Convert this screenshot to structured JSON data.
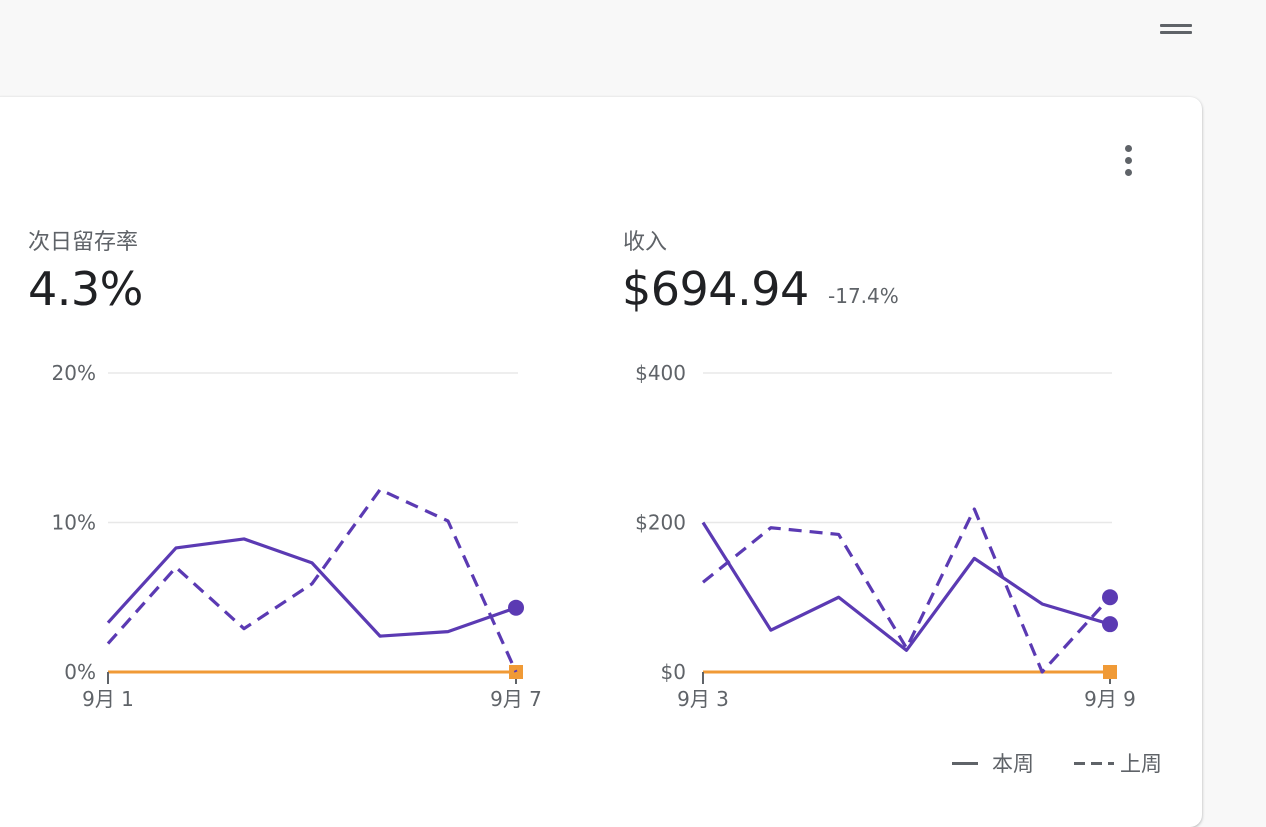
{
  "colors": {
    "series": "#5b3ab3",
    "baseline": "#f09a36",
    "grid": "#e8e8e8",
    "axis_text": "#5f6368"
  },
  "icons": {
    "menu": "hamburger-icon",
    "more": "more-vert-icon"
  },
  "metrics": [
    {
      "label": "次日留存率",
      "value": "4.3%",
      "delta": ""
    },
    {
      "label": "收入",
      "value": "$694.94",
      "delta": "-17.4%"
    }
  ],
  "legend": {
    "this_week": "本周",
    "last_week": "上周"
  },
  "chart_data": [
    {
      "type": "line",
      "y_ticks": [
        "0%",
        "10%",
        "20%"
      ],
      "ylim": [
        0,
        20
      ],
      "x_tick_labels": [
        "9月 1",
        "9月 7"
      ],
      "x": [
        1,
        2,
        3,
        4,
        5,
        6,
        7
      ],
      "series": [
        {
          "name": "本周",
          "style": "solid",
          "values": [
            3.3,
            8.3,
            8.9,
            7.3,
            2.4,
            2.7,
            4.3
          ]
        },
        {
          "name": "上周",
          "style": "dashed",
          "values": [
            1.9,
            7.0,
            2.9,
            5.9,
            12.2,
            10.1,
            0.0
          ]
        }
      ],
      "baseline": {
        "values": [
          0,
          0,
          0,
          0,
          0,
          0,
          0
        ]
      },
      "grid": true
    },
    {
      "type": "line",
      "y_ticks": [
        "$0",
        "$200",
        "$400"
      ],
      "ylim": [
        0,
        400
      ],
      "x_tick_labels": [
        "9月 3",
        "9月 9"
      ],
      "x": [
        3,
        4,
        5,
        6,
        7,
        8,
        9
      ],
      "series": [
        {
          "name": "本周",
          "style": "solid",
          "values": [
            200,
            56,
            100,
            29,
            152,
            91,
            64
          ]
        },
        {
          "name": "上周",
          "style": "dashed",
          "values": [
            120,
            193,
            184,
            32,
            218,
            0,
            100
          ]
        }
      ],
      "baseline": {
        "values": [
          0,
          0,
          0,
          0,
          0,
          0,
          0
        ]
      },
      "grid": true
    }
  ]
}
